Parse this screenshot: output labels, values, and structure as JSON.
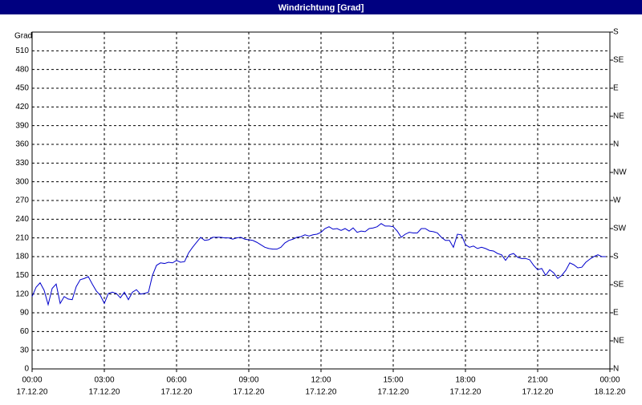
{
  "chart_data": {
    "type": "line",
    "title": "Windrichtung [Grad]",
    "y_label": "Grad",
    "xlim": [
      0,
      1440
    ],
    "xticks": [
      {
        "value": 0,
        "label": "00:00",
        "date": "17.12.20"
      },
      {
        "value": 180,
        "label": "03:00",
        "date": "17.12.20"
      },
      {
        "value": 360,
        "label": "06:00",
        "date": "17.12.20"
      },
      {
        "value": 540,
        "label": "09:00",
        "date": "17.12.20"
      },
      {
        "value": 720,
        "label": "12:00",
        "date": "17.12.20"
      },
      {
        "value": 900,
        "label": "15:00",
        "date": "17.12.20"
      },
      {
        "value": 1080,
        "label": "18:00",
        "date": "17.12.20"
      },
      {
        "value": 1260,
        "label": "21:00",
        "date": "17.12.20"
      },
      {
        "value": 1440,
        "label": "00:00",
        "date": "18.12.20"
      }
    ],
    "ylim": [
      0,
      540
    ],
    "yticks": [
      0,
      30,
      60,
      90,
      120,
      150,
      180,
      210,
      240,
      270,
      300,
      330,
      360,
      390,
      420,
      450,
      480,
      510
    ],
    "y2lim": [
      0,
      540
    ],
    "y2ticks": [
      {
        "value": 0,
        "label": "N"
      },
      {
        "value": 45,
        "label": "NE"
      },
      {
        "value": 90,
        "label": "E"
      },
      {
        "value": 135,
        "label": "SE"
      },
      {
        "value": 180,
        "label": "S"
      },
      {
        "value": 225,
        "label": "SW"
      },
      {
        "value": 270,
        "label": "W"
      },
      {
        "value": 315,
        "label": "NW"
      },
      {
        "value": 360,
        "label": "N"
      },
      {
        "value": 405,
        "label": "NE"
      },
      {
        "value": 450,
        "label": "E"
      },
      {
        "value": 495,
        "label": "SE"
      },
      {
        "value": 540,
        "label": "S"
      }
    ],
    "grid": true,
    "x": [
      0,
      10,
      20,
      30,
      40,
      50,
      60,
      70,
      80,
      90,
      100,
      110,
      120,
      130,
      140,
      150,
      160,
      170,
      180,
      190,
      200,
      210,
      220,
      230,
      240,
      250,
      260,
      270,
      280,
      290,
      300,
      310,
      320,
      330,
      340,
      350,
      360,
      370,
      380,
      390,
      400,
      410,
      420,
      430,
      440,
      450,
      460,
      470,
      480,
      490,
      500,
      510,
      520,
      530,
      540,
      550,
      560,
      570,
      580,
      590,
      600,
      610,
      620,
      630,
      640,
      650,
      660,
      670,
      680,
      690,
      700,
      710,
      720,
      730,
      740,
      750,
      760,
      770,
      780,
      790,
      800,
      810,
      820,
      830,
      840,
      850,
      860,
      870,
      880,
      890,
      900,
      910,
      920,
      930,
      940,
      950,
      960,
      970,
      980,
      990,
      1000,
      1010,
      1020,
      1030,
      1040,
      1050,
      1060,
      1070,
      1080,
      1090,
      1100,
      1110,
      1120,
      1130,
      1140,
      1150,
      1160,
      1170,
      1180,
      1190,
      1200,
      1210,
      1220,
      1230,
      1240,
      1250,
      1260,
      1270,
      1280,
      1290,
      1300,
      1310,
      1320,
      1330,
      1340,
      1350,
      1360,
      1370,
      1380,
      1390,
      1400,
      1410,
      1420,
      1430
    ],
    "series": [
      {
        "color": "#0000cc",
        "values": [
          116,
          131,
          138,
          126,
          103,
          129,
          136,
          105,
          116,
          112,
          111,
          132,
          143,
          145,
          148,
          136,
          125,
          118,
          105,
          121,
          123,
          121,
          114,
          123,
          111,
          123,
          127,
          120,
          121,
          123,
          150,
          166,
          170,
          169,
          171,
          170,
          174,
          171,
          172,
          186,
          195,
          203,
          211,
          206,
          207,
          211,
          211,
          211,
          210,
          210,
          208,
          210,
          211,
          208,
          207,
          206,
          203,
          199,
          195,
          193,
          192,
          192,
          195,
          202,
          206,
          208,
          211,
          212,
          215,
          213,
          215,
          216,
          219,
          225,
          228,
          224,
          225,
          222,
          225,
          221,
          226,
          219,
          221,
          220,
          225,
          226,
          228,
          233,
          229,
          229,
          228,
          221,
          211,
          216,
          219,
          218,
          218,
          225,
          225,
          221,
          220,
          218,
          211,
          206,
          206,
          195,
          216,
          215,
          199,
          195,
          197,
          193,
          195,
          193,
          190,
          189,
          185,
          183,
          174,
          183,
          185,
          179,
          177,
          177,
          175,
          166,
          159,
          161,
          150,
          159,
          154,
          145,
          150,
          158,
          170,
          167,
          162,
          163,
          171,
          176,
          180,
          183,
          180,
          180
        ]
      }
    ]
  }
}
